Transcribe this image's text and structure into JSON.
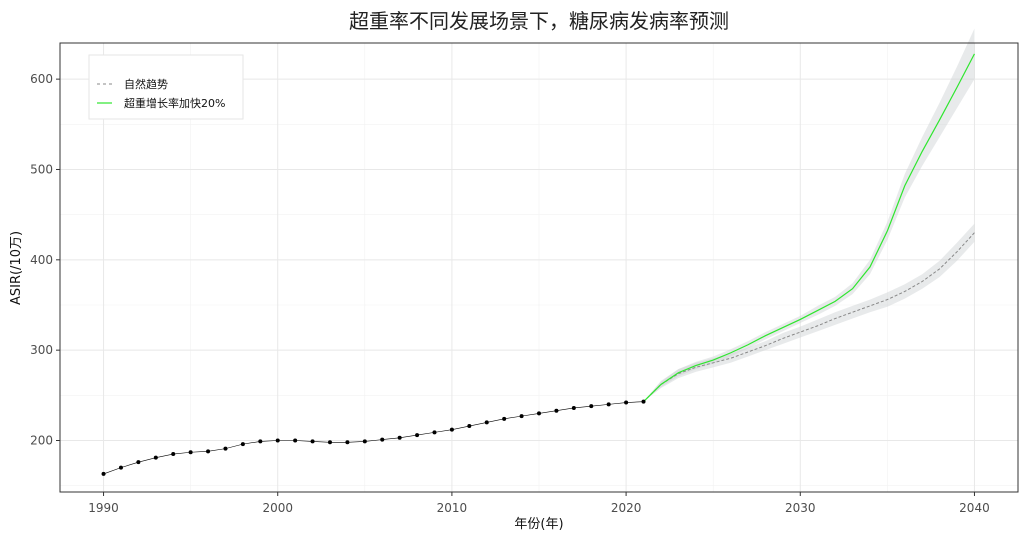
{
  "chart_data": {
    "type": "line",
    "title": "超重率不同发展场景下，糖尿病发病率预测",
    "xlabel": "年份(年)",
    "ylabel": "ASIR(/10万)",
    "xlim": [
      1987.5,
      2042.5
    ],
    "ylim": [
      143,
      640
    ],
    "x_ticks": [
      1990,
      2000,
      2010,
      2020,
      2030,
      2040
    ],
    "y_ticks": [
      200,
      300,
      400,
      500,
      600
    ],
    "grid": true,
    "legend_position": "top-left",
    "historical": {
      "x": [
        1990,
        1991,
        1992,
        1993,
        1994,
        1995,
        1996,
        1997,
        1998,
        1999,
        2000,
        2001,
        2002,
        2003,
        2004,
        2005,
        2006,
        2007,
        2008,
        2009,
        2010,
        2011,
        2012,
        2013,
        2014,
        2015,
        2016,
        2017,
        2018,
        2019,
        2020,
        2021
      ],
      "values": [
        163,
        170,
        176,
        181,
        185,
        187,
        188,
        191,
        196,
        199,
        200,
        200,
        199,
        198,
        198,
        199,
        201,
        203,
        206,
        209,
        212,
        216,
        220,
        224,
        227,
        230,
        233,
        236,
        238,
        240,
        242,
        243
      ],
      "color": "#000000"
    },
    "series": [
      {
        "name": "自然趋势",
        "style": "dashed",
        "color": "#888888",
        "x": [
          2021,
          2022,
          2023,
          2024,
          2025,
          2026,
          2027,
          2028,
          2029,
          2030,
          2031,
          2032,
          2033,
          2034,
          2035,
          2036,
          2037,
          2038,
          2039,
          2040
        ],
        "values": [
          243,
          262,
          274,
          281,
          286,
          291,
          298,
          305,
          313,
          320,
          327,
          335,
          342,
          349,
          356,
          365,
          376,
          390,
          409,
          430
        ],
        "lower": [
          243,
          258,
          269,
          276,
          281,
          286,
          293,
          300,
          307,
          314,
          321,
          328,
          335,
          342,
          348,
          357,
          368,
          381,
          399,
          420
        ],
        "upper": [
          243,
          266,
          279,
          286,
          291,
          296,
          303,
          310,
          319,
          326,
          334,
          342,
          349,
          356,
          364,
          373,
          384,
          399,
          419,
          440
        ]
      },
      {
        "name": "超重增长率加快20%",
        "style": "solid",
        "color": "#2ee62e",
        "x": [
          2021,
          2022,
          2023,
          2024,
          2025,
          2026,
          2027,
          2028,
          2029,
          2030,
          2031,
          2032,
          2033,
          2034,
          2035,
          2036,
          2037,
          2038,
          2039,
          2040
        ],
        "values": [
          243,
          262,
          275,
          283,
          289,
          297,
          306,
          316,
          325,
          334,
          344,
          354,
          368,
          392,
          432,
          482,
          520,
          555,
          591,
          628
        ],
        "lower": [
          243,
          259,
          271,
          279,
          285,
          293,
          302,
          312,
          321,
          330,
          339,
          349,
          362,
          384,
          422,
          469,
          504,
          536,
          568,
          600
        ],
        "upper": [
          243,
          265,
          279,
          287,
          293,
          301,
          310,
          320,
          329,
          338,
          349,
          359,
          374,
          400,
          442,
          495,
          536,
          574,
          614,
          656
        ]
      }
    ]
  }
}
